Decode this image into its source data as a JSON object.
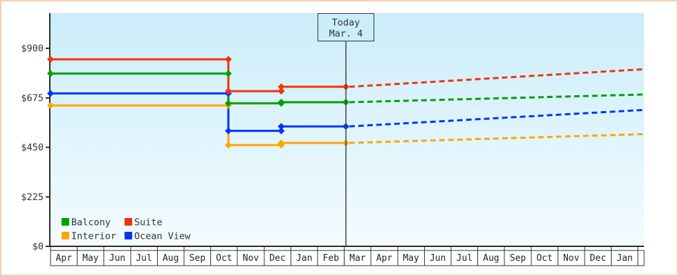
{
  "colors": {
    "page_border": "#eaa45c",
    "axis": "#2b2b2b",
    "today_line": "#444444",
    "today_box_border": "#333333",
    "month_cell_fill": "#ffffff",
    "month_cell_border": "#333333"
  },
  "chart_data": {
    "type": "line",
    "title": "",
    "grid": "off",
    "legend_position": "bottom-left",
    "plot_background": {
      "top": "#cbedfa",
      "bottom": "#f3fbfe"
    },
    "y_axis": {
      "ticks": [
        0,
        225,
        450,
        675,
        900
      ],
      "tick_labels": [
        "$0",
        "$225",
        "$450",
        "$675",
        "$900"
      ],
      "ylim": [
        0,
        1060
      ]
    },
    "x_categories": [
      "Apr",
      "May",
      "Jun",
      "Jul",
      "Aug",
      "Sep",
      "Oct",
      "Nov",
      "Dec",
      "Jan",
      "Feb",
      "Mar",
      "Apr",
      "May",
      "Jun",
      "Jul",
      "Aug",
      "Sep",
      "Oct",
      "Nov",
      "Dec",
      "Jan"
    ],
    "x_breaks": {
      "start": 0,
      "drop": 6.66,
      "drop_date_approx": "Oct 21",
      "step": 8.64,
      "step_date_approx": "Dec 21",
      "today": 11.06,
      "proj_end": 22.23
    },
    "today_marker": {
      "line1": "Today",
      "line2": "Mar. 4"
    },
    "series": [
      {
        "name": "Balcony",
        "color": "#00a000",
        "price_start": 785,
        "price_after_drop": 650,
        "price_after_step": 655,
        "price_projected_end": 690
      },
      {
        "name": "Suite",
        "color": "#f43208",
        "price_start": 850,
        "price_after_drop": 705,
        "price_after_step": 725,
        "price_projected_end": 805
      },
      {
        "name": "Interior",
        "color": "#ffa500",
        "price_start": 640,
        "price_after_drop": 460,
        "price_after_step": 470,
        "price_projected_end": 510
      },
      {
        "name": "Ocean View",
        "color": "#0033ff",
        "price_start": 695,
        "price_after_drop": 525,
        "price_after_step": 545,
        "price_projected_end": 620
      }
    ],
    "legend_items": [
      "Balcony",
      "Suite",
      "Interior",
      "Ocean View"
    ]
  }
}
